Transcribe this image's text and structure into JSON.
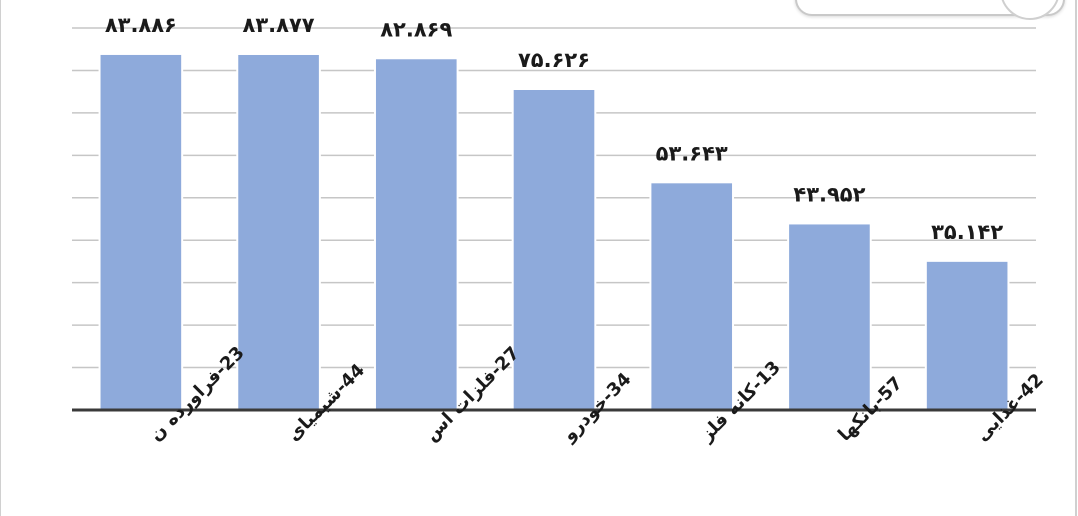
{
  "chart_data": {
    "type": "bar",
    "categories": [
      "23-فراورده ن",
      "44-شیمیای",
      "27-فلزات اس",
      "34-خودرو",
      "13-کانه فلز",
      "57-بانکها",
      "42-غذایی"
    ],
    "values": [
      83.886,
      83.877,
      82.869,
      75.626,
      53.643,
      43.952,
      35.142
    ],
    "value_labels": [
      "۸۳.۸۸۶",
      "۸۳.۸۷۷",
      "۸۲.۸۶۹",
      "۷۵.۶۲۶",
      "۵۳.۶۴۳",
      "۴۳.۹۵۲",
      "۳۵.۱۴۲"
    ],
    "ylim": [
      0,
      90
    ],
    "grid": true,
    "bar_color": "#8eaadb",
    "bar_edge_color": "#ffffff",
    "grid_color": "#c6c6c6",
    "axis_color": "#3a3a3a",
    "title": "",
    "xlabel": "",
    "ylabel": ""
  }
}
